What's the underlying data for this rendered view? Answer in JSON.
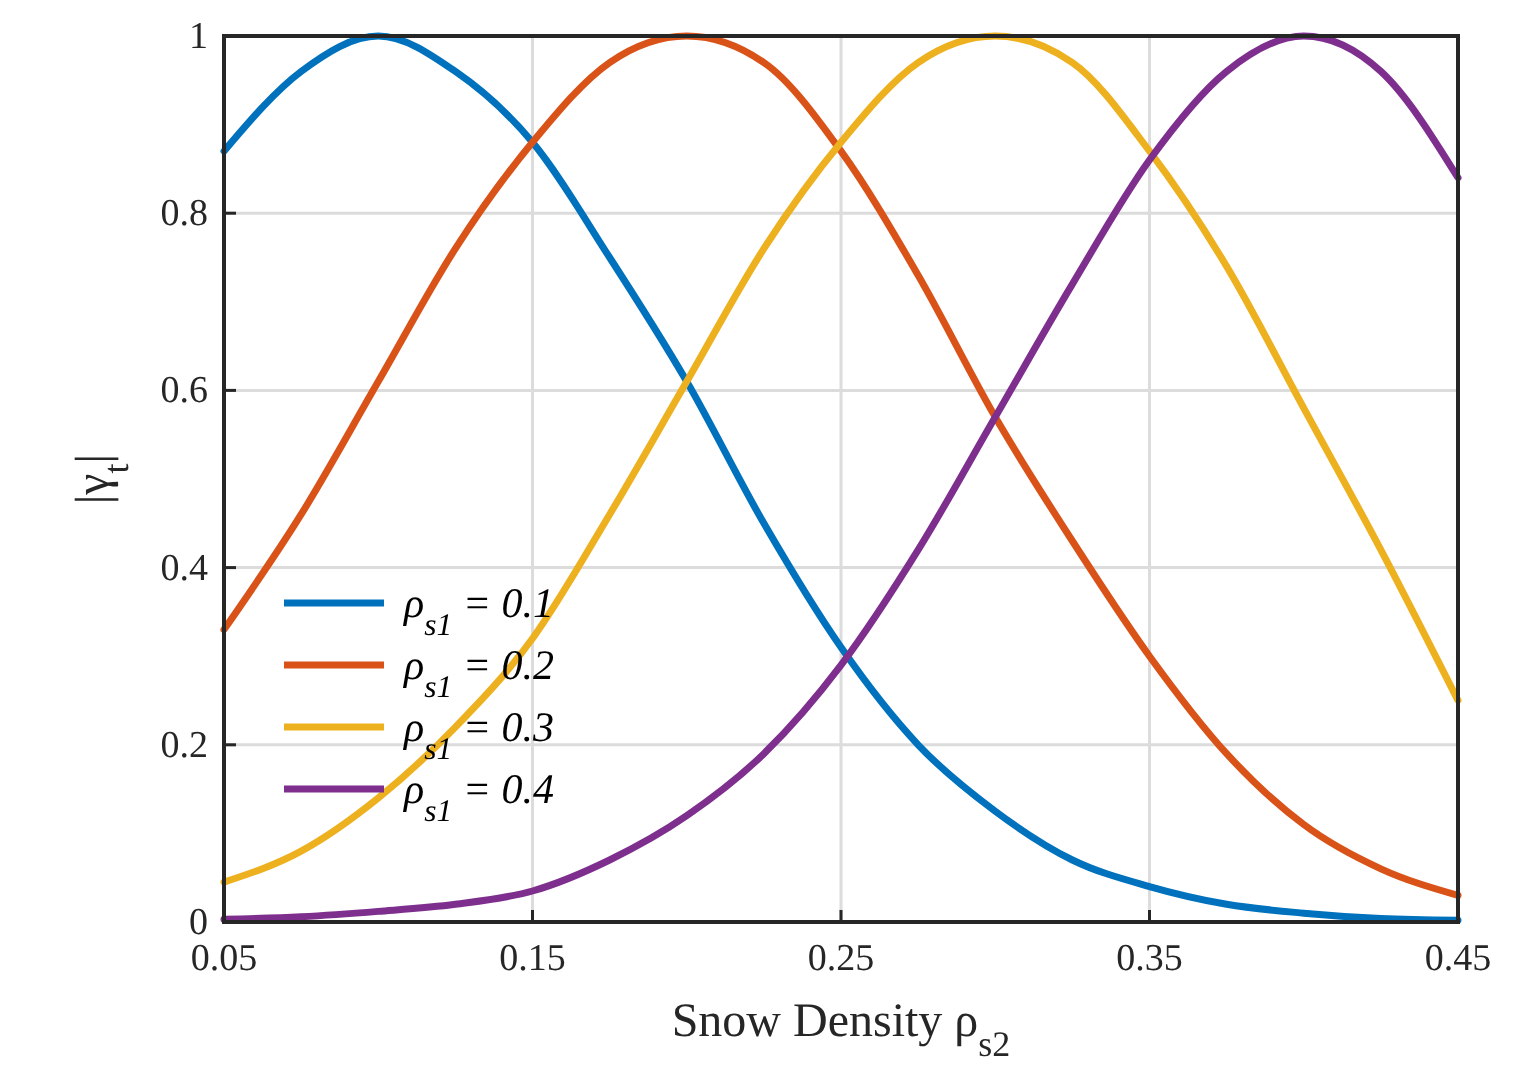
{
  "chart_data": {
    "type": "line",
    "xlabel": "Snow Density ρ$_{s2}$",
    "ylabel": "|γ$_{t}$|",
    "x": [
      0.05,
      0.075,
      0.1,
      0.125,
      0.15,
      0.175,
      0.2,
      0.225,
      0.25,
      0.275,
      0.3,
      0.325,
      0.35,
      0.375,
      0.4,
      0.425,
      0.45
    ],
    "series": [
      {
        "name": "ρ$_{s1}$ = 0.1",
        "color": "#0072bd",
        "values": [
          0.87,
          0.96,
          1.0,
          0.96,
          0.88,
          0.75,
          0.61,
          0.45,
          0.31,
          0.2,
          0.125,
          0.07,
          0.04,
          0.02,
          0.01,
          0.004,
          0.002
        ]
      },
      {
        "name": "ρ$_{s1}$ = 0.2",
        "color": "#d95319",
        "values": [
          0.33,
          0.46,
          0.61,
          0.76,
          0.88,
          0.97,
          1.0,
          0.97,
          0.87,
          0.73,
          0.57,
          0.43,
          0.3,
          0.19,
          0.11,
          0.06,
          0.03
        ]
      },
      {
        "name": "ρ$_{s1}$ = 0.3",
        "color": "#edb120",
        "values": [
          0.045,
          0.08,
          0.14,
          0.22,
          0.32,
          0.46,
          0.61,
          0.76,
          0.88,
          0.97,
          1.0,
          0.97,
          0.87,
          0.74,
          0.58,
          0.42,
          0.25
        ]
      },
      {
        "name": "ρ$_{s1}$ = 0.4",
        "color": "#7e2f8e",
        "values": [
          0.003,
          0.006,
          0.012,
          0.02,
          0.035,
          0.07,
          0.12,
          0.19,
          0.29,
          0.42,
          0.57,
          0.72,
          0.86,
          0.96,
          1.0,
          0.96,
          0.84
        ]
      }
    ],
    "xlim": [
      0.05,
      0.45
    ],
    "xticks": [
      0.05,
      0.15,
      0.25,
      0.35,
      0.45
    ],
    "ylim": [
      0,
      1
    ],
    "yticks": [
      0,
      0.2,
      0.4,
      0.6,
      0.8,
      1
    ],
    "grid": true,
    "legend": "bottom left",
    "marker": "none",
    "line_style": "solid"
  }
}
